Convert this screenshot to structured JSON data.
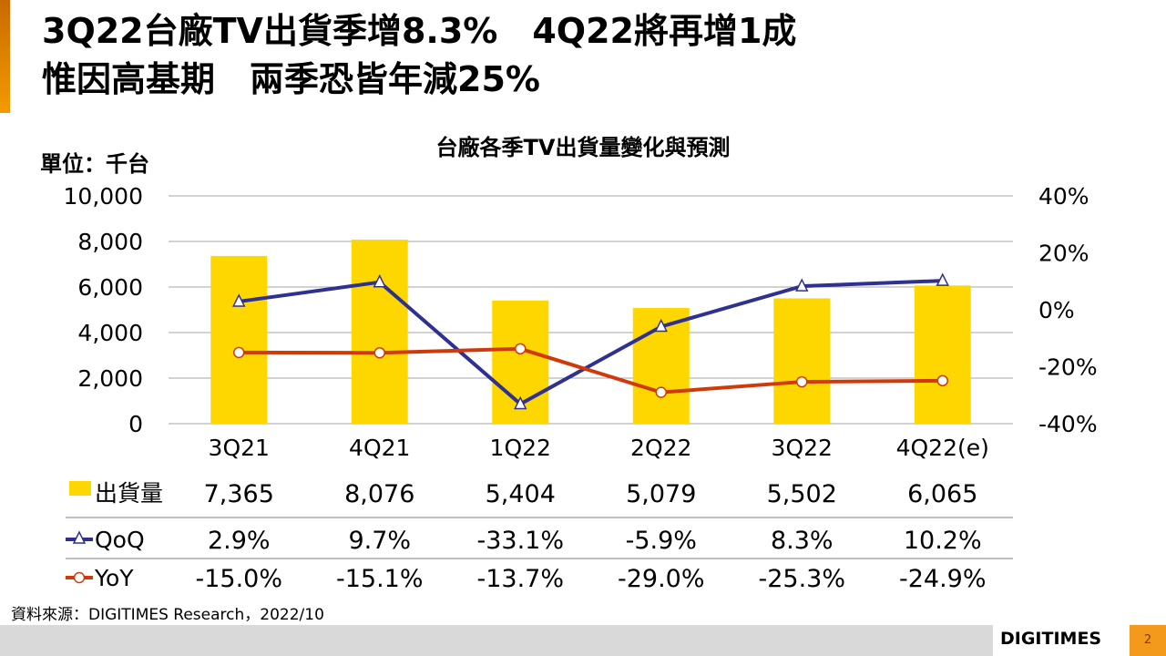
{
  "slide": {
    "title_line1": "3Q22台廠TV出貨季增8.3%　4Q22將再增1成",
    "title_line2": "惟因高基期　兩季恐皆年減25%",
    "source": "資料來源：DIGITIMES Research，2022/10",
    "logo": "DIGITIMES",
    "page_number": "2"
  },
  "chart_data": {
    "type": "bar+line",
    "title": "台廠各季TV出貨量變化與預測",
    "unit_label": "單位：千台",
    "categories": [
      "3Q21",
      "4Q21",
      "1Q22",
      "2Q22",
      "3Q22",
      "4Q22(e)"
    ],
    "left_axis": {
      "ylim": [
        0,
        10000
      ],
      "ticks": [
        "0",
        "2,000",
        "4,000",
        "6,000",
        "8,000",
        "10,000"
      ]
    },
    "right_axis": {
      "ylim": [
        -40,
        40
      ],
      "ticks": [
        "-40%",
        "-20%",
        "0%",
        "20%",
        "40%"
      ]
    },
    "series": [
      {
        "name": "出貨量",
        "type": "bar",
        "axis": "left",
        "color": "#ffd700",
        "values": [
          7365,
          8076,
          5404,
          5079,
          5502,
          6065
        ],
        "labels": [
          "7,365",
          "8,076",
          "5,404",
          "5,079",
          "5,502",
          "6,065"
        ]
      },
      {
        "name": "QoQ",
        "type": "line",
        "axis": "right",
        "color": "#2e3192",
        "marker": "triangle",
        "values": [
          2.9,
          9.7,
          -33.1,
          -5.9,
          8.3,
          10.2
        ],
        "labels": [
          "2.9%",
          "9.7%",
          "-33.1%",
          "-5.9%",
          "8.3%",
          "10.2%"
        ]
      },
      {
        "name": "YoY",
        "type": "line",
        "axis": "right",
        "color": "#d03a0a",
        "marker": "circle",
        "values": [
          -15.0,
          -15.1,
          -13.7,
          -29.0,
          -25.3,
          -24.9
        ],
        "labels": [
          "-15.0%",
          "-15.1%",
          "-13.7%",
          "-29.0%",
          "-25.3%",
          "-24.9%"
        ]
      }
    ]
  }
}
